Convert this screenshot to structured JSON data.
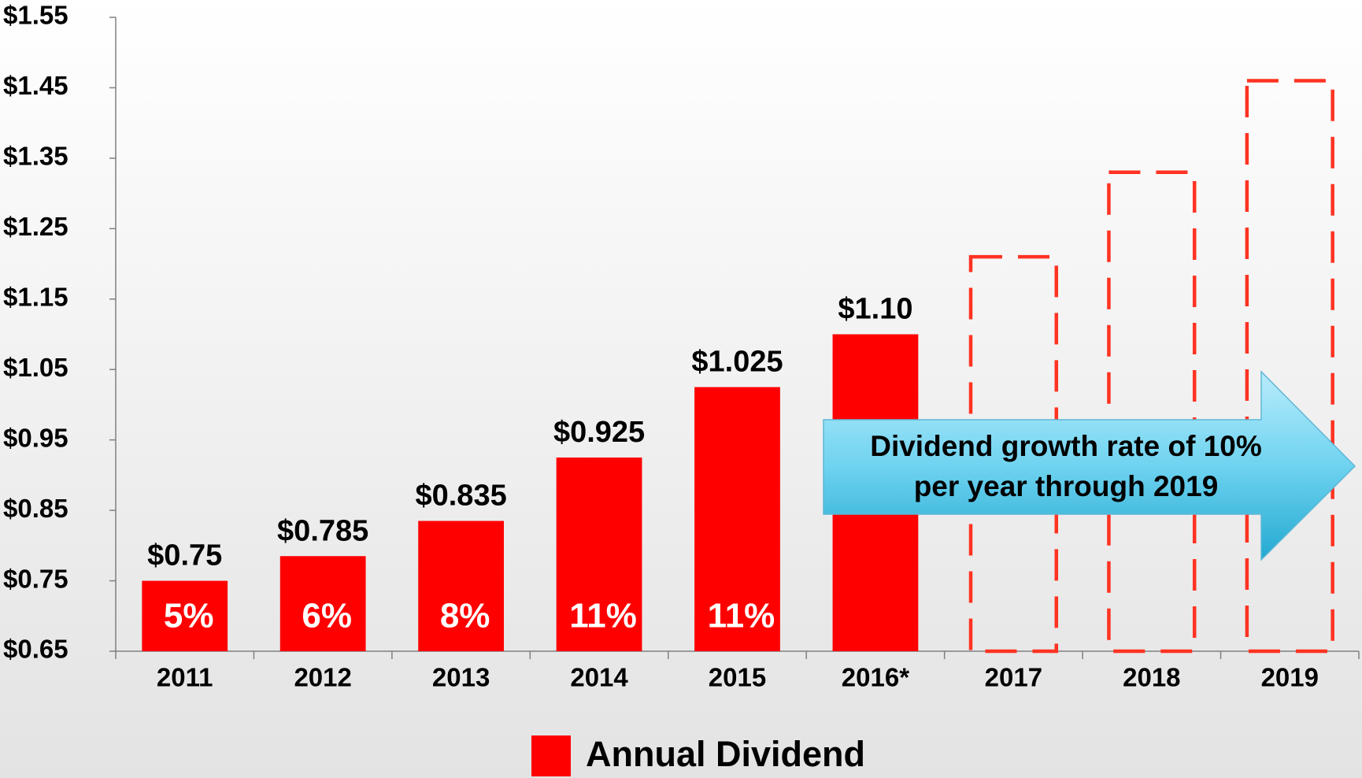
{
  "chart_data": {
    "type": "bar",
    "categories": [
      "2011",
      "2012",
      "2013",
      "2014",
      "2015",
      "2016*",
      "2017",
      "2018",
      "2019"
    ],
    "series": [
      {
        "name": "Annual Dividend",
        "color": "#ff0000",
        "values": [
          0.75,
          0.785,
          0.835,
          0.925,
          1.025,
          1.1,
          null,
          null,
          null
        ],
        "value_labels": [
          "$0.75",
          "$0.785",
          "$0.835",
          "$0.925",
          "$1.025",
          "$1.10",
          null,
          null,
          null
        ]
      },
      {
        "color": "#ff3322",
        "dashed": true,
        "values": [
          null,
          null,
          null,
          null,
          null,
          null,
          1.21,
          1.33,
          1.46
        ]
      }
    ],
    "growth": {
      "values": [
        5,
        6,
        8,
        11,
        11,
        null,
        null,
        null,
        null
      ],
      "value_labels": [
        "5%",
        "6%",
        "8%",
        "11%",
        "11%",
        null,
        null,
        null,
        null
      ]
    },
    "annotation": [
      "Dividend growth rate of 10%",
      "per year through 2019"
    ],
    "ylim": [
      0.65,
      1.55
    ],
    "yticks": [
      {
        "value": 0.65,
        "label": "$0.65"
      },
      {
        "value": 0.75,
        "label": "$0.75"
      },
      {
        "value": 0.85,
        "label": "$0.85"
      },
      {
        "value": 0.95,
        "label": "$0.95"
      },
      {
        "value": 1.05,
        "label": "$1.05"
      },
      {
        "value": 1.15,
        "label": "$1.15"
      },
      {
        "value": 1.25,
        "label": "$1.25"
      },
      {
        "value": 1.35,
        "label": "$1.35"
      },
      {
        "value": 1.45,
        "label": "$1.45"
      },
      {
        "value": 1.55,
        "label": "$1.55"
      }
    ],
    "grid": false,
    "legend": "bottom"
  }
}
